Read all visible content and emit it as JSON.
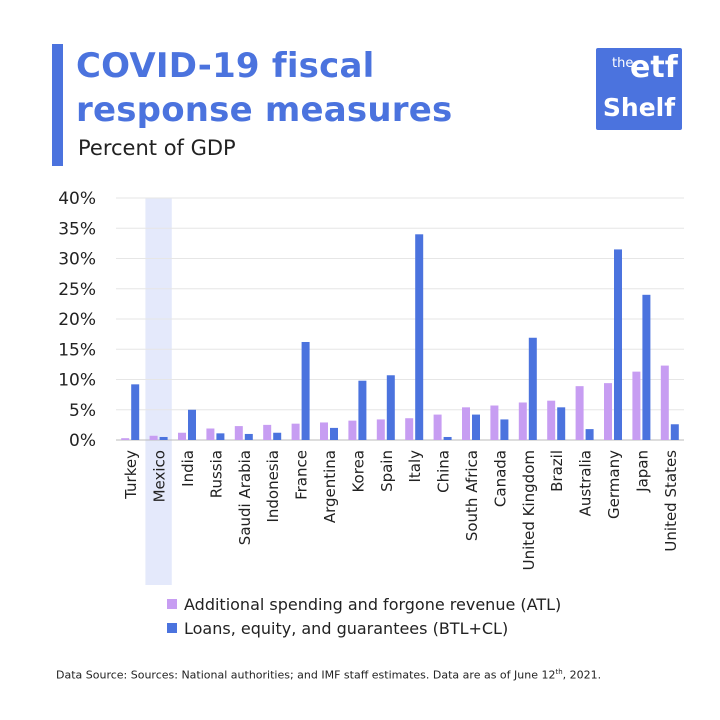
{
  "header": {
    "title_line1": "COVID-19 fiscal",
    "title_line2": "response measures",
    "subtitle": "Percent of GDP"
  },
  "logo": {
    "the": "the",
    "etf": "etf",
    "shelf": "Shelf"
  },
  "colors": {
    "accent": "#4b73de",
    "atl": "#c79df2",
    "btl": "#4b73de",
    "highlight": "#e4e9fb",
    "grid": "#e6e6e6"
  },
  "chart_data": {
    "type": "bar",
    "title": "COVID-19 fiscal response measures",
    "subtitle": "Percent of GDP",
    "categories": [
      "Turkey",
      "Mexico",
      "India",
      "Russia",
      "Saudi Arabia",
      "Indonesia",
      "France",
      "Argentina",
      "Korea",
      "Spain",
      "Italy",
      "China",
      "South Africa",
      "Canada",
      "United Kingdom",
      "Brazil",
      "Australia",
      "Germany",
      "Japan",
      "United States"
    ],
    "series": [
      {
        "name": "Additional spending and forgone revenue (ATL)",
        "values": [
          0.3,
          0.7,
          1.2,
          1.9,
          2.3,
          2.5,
          2.7,
          2.9,
          3.2,
          3.4,
          3.6,
          4.2,
          5.4,
          5.7,
          6.2,
          6.5,
          8.9,
          9.4,
          11.3,
          12.3
        ]
      },
      {
        "name": "Loans, equity, and guarantees (BTL+CL)",
        "values": [
          9.2,
          0.5,
          5.0,
          1.1,
          1.0,
          1.2,
          16.2,
          2.0,
          9.8,
          10.7,
          34.0,
          0.5,
          4.2,
          3.4,
          16.9,
          5.4,
          1.8,
          31.5,
          24.0,
          2.6
        ]
      }
    ],
    "highlighted_category": "Mexico",
    "yticks": [
      "0%",
      "5%",
      "10%",
      "15%",
      "20%",
      "25%",
      "30%",
      "35%",
      "40%"
    ],
    "ylim": [
      0,
      40
    ],
    "grid": true,
    "legend_position": "bottom"
  },
  "source": {
    "text": "Data Source: Sources: National authorities; and IMF staff estimates. Data are as of June 12",
    "sup": "th",
    "tail": ", 2021."
  }
}
